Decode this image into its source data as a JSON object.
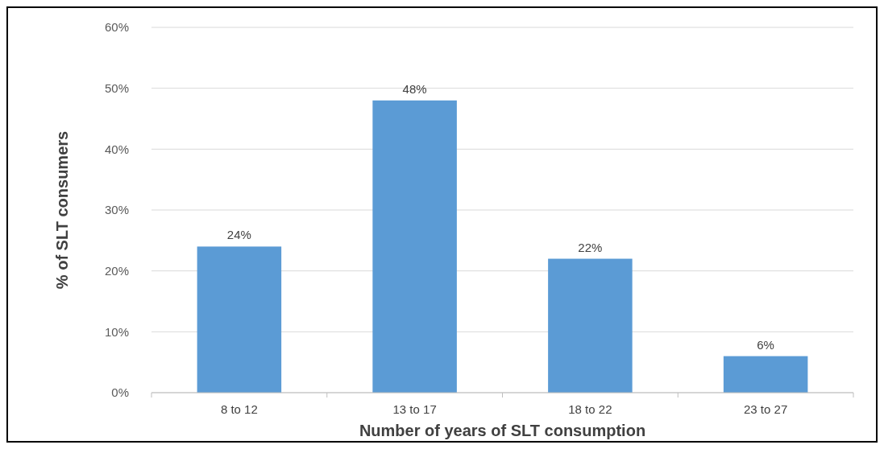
{
  "chart_data": {
    "type": "bar",
    "xlabel": "Number of years of SLT consumption",
    "ylabel": "% of SLT consumers",
    "categories": [
      "8 to 12",
      "13 to 17",
      "18 to 22",
      "23 to 27"
    ],
    "values": [
      24,
      48,
      22,
      6
    ],
    "color": "#5b9bd5",
    "value_labels": [
      "24%",
      "48%",
      "22%",
      "6%"
    ],
    "ylim": [
      0,
      60
    ],
    "yticks": [
      {
        "value": 0,
        "label": "0%"
      },
      {
        "value": 10,
        "label": "10%"
      },
      {
        "value": 20,
        "label": "20%"
      },
      {
        "value": 30,
        "label": "30%"
      },
      {
        "value": 40,
        "label": "40%"
      },
      {
        "value": 50,
        "label": "50%"
      },
      {
        "value": 60,
        "label": "60%"
      }
    ],
    "grid": "y"
  }
}
